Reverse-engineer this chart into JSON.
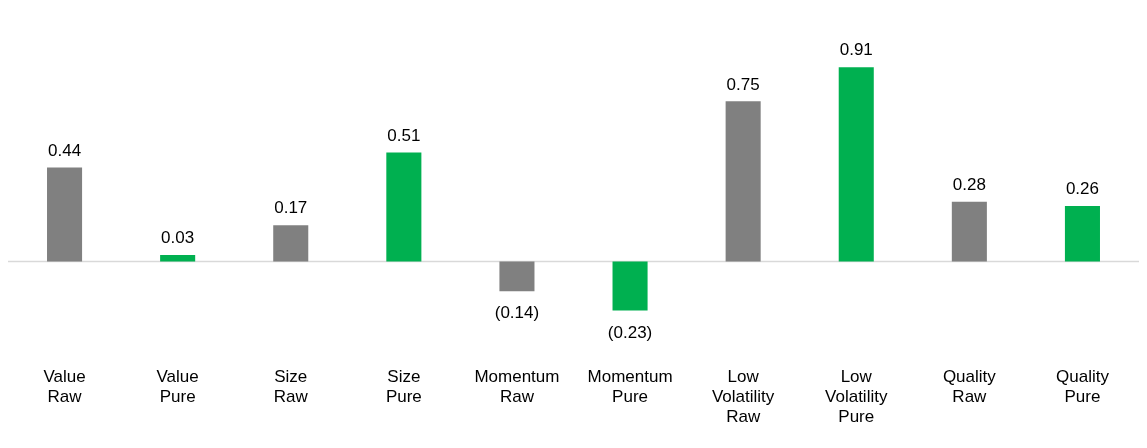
{
  "chart_data": {
    "type": "bar",
    "categories": [
      "Value Raw",
      "Value Pure",
      "Size Raw",
      "Size Pure",
      "Momentum Raw",
      "Momentum Pure",
      "Low Volatility Raw",
      "Low Volatility Pure",
      "Quality Raw",
      "Quality Pure"
    ],
    "values": [
      0.44,
      0.03,
      0.17,
      0.51,
      -0.14,
      -0.23,
      0.75,
      0.91,
      0.28,
      0.26
    ],
    "colors": [
      "#808080",
      "#00b050",
      "#808080",
      "#00b050",
      "#808080",
      "#00b050",
      "#808080",
      "#00b050",
      "#808080",
      "#00b050"
    ],
    "value_labels": [
      "0.44",
      "0.03",
      "0.17",
      "0.51",
      "(0.14)",
      "(0.23)",
      "0.75",
      "0.91",
      "0.28",
      "0.26"
    ],
    "grid": false,
    "legend": false
  }
}
